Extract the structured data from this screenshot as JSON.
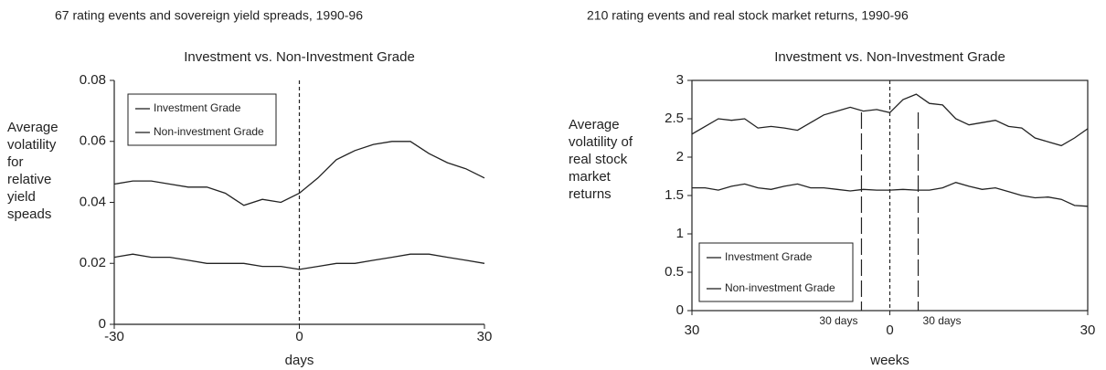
{
  "chart_data": [
    {
      "type": "line",
      "heading": "67 rating events and sovereign yield spreads, 1990-96",
      "title": "Investment vs. Non-Investment Grade",
      "ylabel": [
        "Average",
        "volatility",
        "for",
        "relative",
        "yield",
        "speads"
      ],
      "xlabel": "days",
      "x": [
        -30,
        -27,
        -24,
        -21,
        -18,
        -15,
        -12,
        -9,
        -6,
        -3,
        0,
        3,
        6,
        9,
        12,
        15,
        18,
        21,
        24,
        27,
        30
      ],
      "series": [
        {
          "name": "Investment Grade",
          "color": "#222",
          "values": [
            0.022,
            0.023,
            0.022,
            0.022,
            0.021,
            0.02,
            0.02,
            0.02,
            0.019,
            0.019,
            0.018,
            0.019,
            0.02,
            0.02,
            0.021,
            0.022,
            0.023,
            0.023,
            0.022,
            0.021,
            0.02
          ]
        },
        {
          "name": "Non-investment Grade",
          "color": "#222",
          "values": [
            0.046,
            0.047,
            0.047,
            0.046,
            0.045,
            0.045,
            0.043,
            0.039,
            0.041,
            0.04,
            0.043,
            0.048,
            0.054,
            0.057,
            0.059,
            0.06,
            0.06,
            0.056,
            0.053,
            0.051,
            0.048
          ]
        }
      ],
      "xlim": [
        -30,
        30
      ],
      "xticks": [
        -30,
        0,
        30
      ],
      "ylim": [
        0,
        0.08
      ],
      "yticks": [
        0,
        0.02,
        0.04,
        0.06,
        0.08
      ],
      "vline": 0,
      "legend": "upper left",
      "box": false
    },
    {
      "type": "line",
      "heading": "210 rating events and real stock market returns, 1990-96",
      "title": "Investment vs. Non-Investment Grade",
      "ylabel": [
        "Average",
        "volatility of",
        "real stock",
        "market",
        "returns"
      ],
      "xlabel": "weeks",
      "x": [
        -30,
        -28,
        -26,
        -24,
        -22,
        -20,
        -18,
        -16,
        -14,
        -12,
        -10,
        -8,
        -6,
        -4,
        -2,
        0,
        2,
        4,
        6,
        8,
        10,
        12,
        14,
        16,
        18,
        20,
        22,
        24,
        26,
        28,
        30
      ],
      "series": [
        {
          "name": "Investment Grade",
          "color": "#222",
          "values": [
            1.6,
            1.6,
            1.57,
            1.62,
            1.65,
            1.6,
            1.58,
            1.62,
            1.65,
            1.6,
            1.6,
            1.58,
            1.56,
            1.58,
            1.57,
            1.57,
            1.58,
            1.57,
            1.57,
            1.6,
            1.67,
            1.62,
            1.58,
            1.6,
            1.55,
            1.5,
            1.47,
            1.48,
            1.45,
            1.37,
            1.36
          ]
        },
        {
          "name": "Non-investment Grade",
          "color": "#222",
          "values": [
            2.3,
            2.4,
            2.5,
            2.48,
            2.5,
            2.38,
            2.4,
            2.38,
            2.35,
            2.45,
            2.55,
            2.6,
            2.65,
            2.6,
            2.62,
            2.58,
            2.75,
            2.82,
            2.7,
            2.68,
            2.5,
            2.42,
            2.45,
            2.48,
            2.4,
            2.38,
            2.25,
            2.2,
            2.15,
            2.25,
            2.37
          ]
        }
      ],
      "xlim": [
        -30,
        30
      ],
      "xticks": [
        {
          "value": -30,
          "label": "30"
        },
        0,
        30
      ],
      "ylim": [
        0,
        3
      ],
      "yticks": [
        0,
        0.5,
        1,
        1.5,
        2,
        2.5,
        3
      ],
      "vline": 0,
      "markers": [
        {
          "x": -4.3,
          "label": "30 days"
        },
        {
          "x": 4.3,
          "label": "30 days"
        }
      ],
      "legend": "lower left",
      "box": true
    }
  ]
}
